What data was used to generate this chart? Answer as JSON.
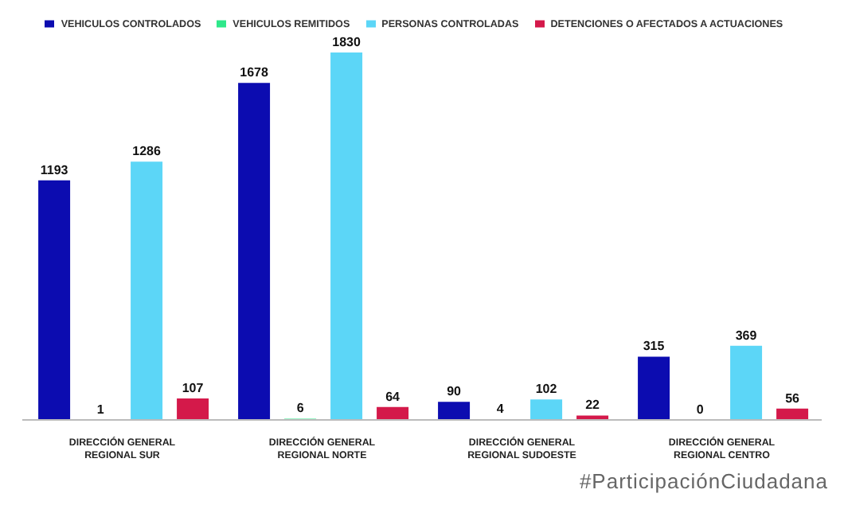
{
  "chart_data": {
    "type": "bar",
    "categories": [
      "DIRECCIÓN GENERAL REGIONAL SUR",
      "DIRECCIÓN GENERAL REGIONAL NORTE",
      "DIRECCIÓN GENERAL REGIONAL SUDOESTE",
      "DIRECCIÓN GENERAL REGIONAL CENTRO"
    ],
    "series": [
      {
        "name": "VEHICULOS CONTROLADOS",
        "color": "#0c0cb0",
        "values": [
          1193,
          1678,
          90,
          315
        ]
      },
      {
        "name": "VEHICULOS REMITIDOS",
        "color": "#2ee88a",
        "values": [
          1,
          6,
          4,
          0
        ]
      },
      {
        "name": "PERSONAS CONTROLADAS",
        "color": "#5cd6f7",
        "values": [
          1286,
          1830,
          102,
          369
        ]
      },
      {
        "name": "DETENCIONES O AFECTADOS A ACTUACIONES",
        "color": "#d4194a",
        "values": [
          107,
          64,
          22,
          56
        ]
      }
    ],
    "data_labels": true,
    "legend": "top",
    "annotations": [
      "#ParticipaciónCiudadana"
    ]
  }
}
